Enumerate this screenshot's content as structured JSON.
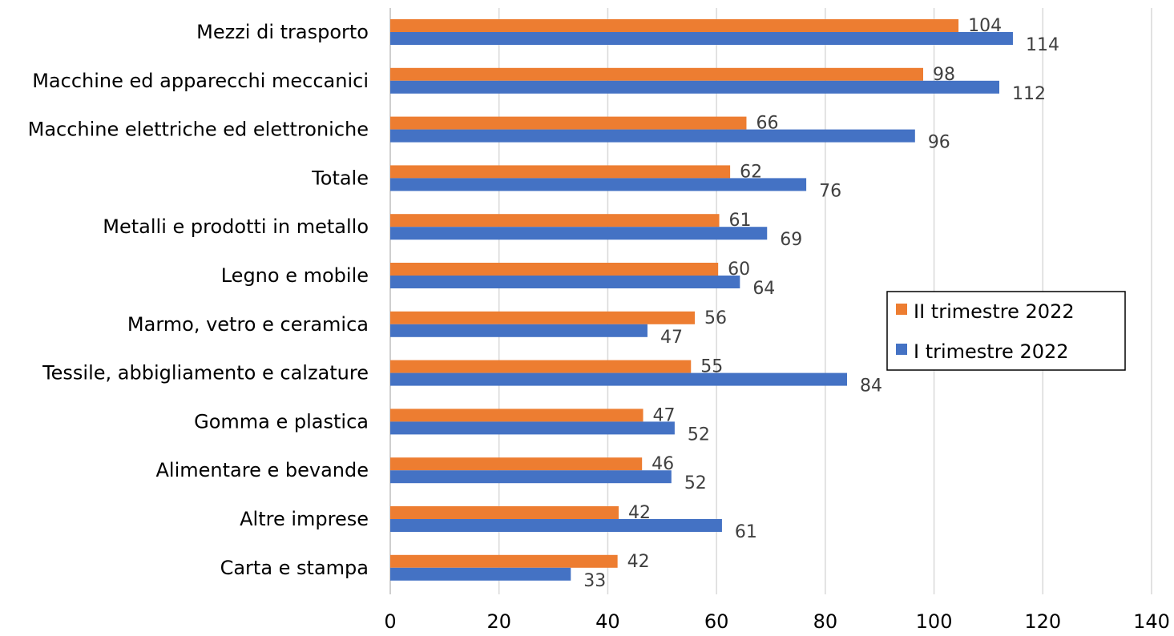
{
  "chart_data": {
    "type": "bar",
    "orientation": "horizontal",
    "categories": [
      "Mezzi di trasporto",
      "Macchine ed apparecchi meccanici",
      "Macchine elettriche ed elettroniche",
      "Totale",
      "Metalli e prodotti in metallo",
      "Legno e mobile",
      "Marmo, vetro e ceramica",
      "Tessile, abbigliamento e calzature",
      "Gomma e plastica",
      "Alimentare e bevande",
      "Altre imprese",
      "Carta e stampa"
    ],
    "series": [
      {
        "name": "II trimestre 2022",
        "color": "#ED7D31",
        "values": [
          104.5,
          98,
          65.5,
          62.5,
          60.5,
          60.3,
          56,
          55.3,
          46.5,
          46.3,
          42,
          41.8
        ],
        "labels": [
          "104",
          "98",
          "66",
          "62",
          "61",
          "60",
          "56",
          "55",
          "47",
          "46",
          "42",
          "42"
        ]
      },
      {
        "name": "I trimestre 2022",
        "color": "#4472C4",
        "values": [
          114.5,
          112,
          96.5,
          76.5,
          69.3,
          64.3,
          47.3,
          84,
          52.3,
          51.7,
          61,
          33.2
        ],
        "labels": [
          "114",
          "112",
          "96",
          "76",
          "69",
          "64",
          "47",
          "84",
          "52",
          "52",
          "61",
          "33"
        ]
      }
    ],
    "xlim": [
      0,
      140
    ],
    "xticks": [
      "0",
      "20",
      "40",
      "60",
      "80",
      "100",
      "120",
      "140"
    ],
    "grid": true,
    "legend_position": "right",
    "title": "",
    "xlabel": "",
    "ylabel": ""
  }
}
